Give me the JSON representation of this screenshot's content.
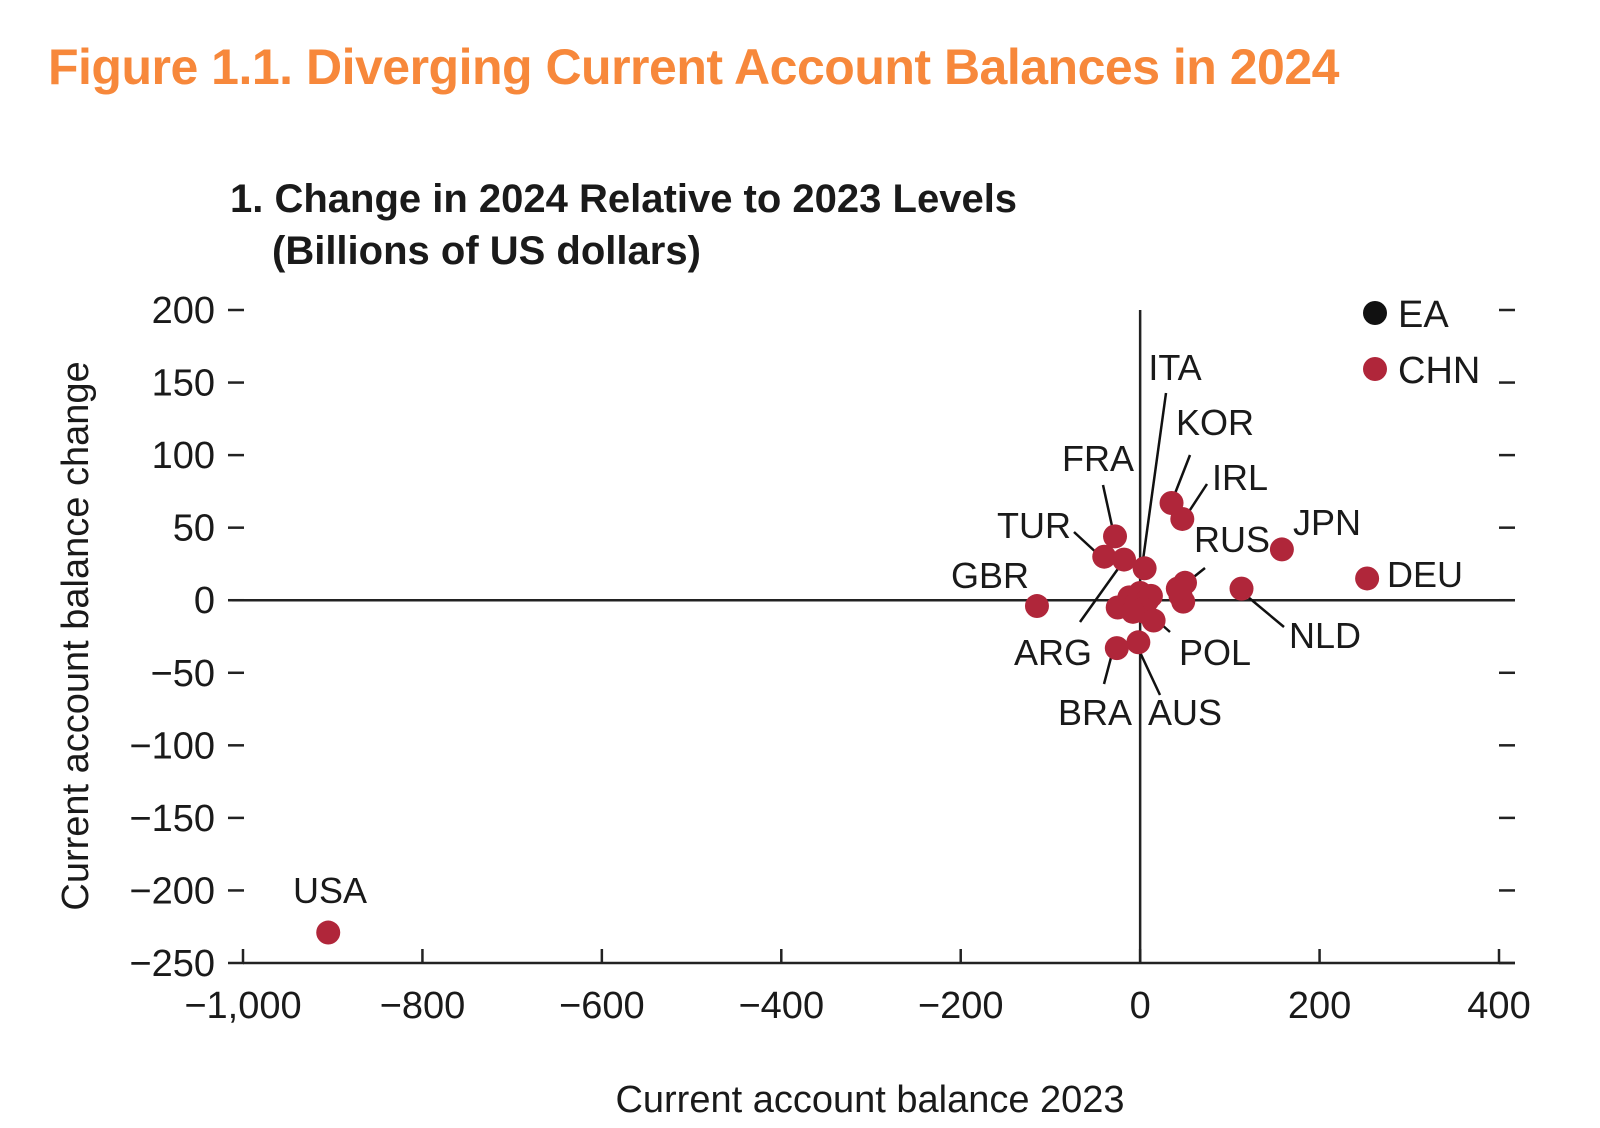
{
  "figure_title": "Figure 1.1. Diverging Current Account Balances in 2024",
  "chart_data": {
    "type": "scatter",
    "title": "1. Change in 2024 Relative to 2023 Levels",
    "subtitle": "(Billions of US dollars)",
    "xlabel": "Current account balance 2023",
    "ylabel": "Current account balance change",
    "xlim": [
      -1000,
      400
    ],
    "ylim": [
      -250,
      200
    ],
    "x_ticks": [
      -1000,
      -800,
      -600,
      -400,
      -200,
      0,
      200,
      400
    ],
    "x_tick_labels": [
      "−1,000",
      "−800",
      "−600",
      "−400",
      "−200",
      "0",
      "200",
      "400"
    ],
    "y_ticks": [
      200,
      150,
      100,
      50,
      0,
      -50,
      -100,
      -150,
      -200,
      -250
    ],
    "y_tick_labels": [
      "200",
      "150",
      "100",
      "50",
      "0",
      "−50",
      "−100",
      "−150",
      "−200",
      "−250"
    ],
    "legend": [
      {
        "name": "EA",
        "color": "#111111"
      },
      {
        "name": "CHN",
        "color": "#b0263a"
      }
    ],
    "legend_position": "top-right",
    "point_color": "#b0263a",
    "labeled_points": [
      {
        "label": "USA",
        "x": -905,
        "y": -229
      },
      {
        "label": "GBR",
        "x": -115,
        "y": -4
      },
      {
        "label": "TUR",
        "x": -40,
        "y": 30
      },
      {
        "label": "FRA",
        "x": -28,
        "y": 44
      },
      {
        "label": "ITA",
        "x": 5,
        "y": 22
      },
      {
        "label": "KOR",
        "x": 35,
        "y": 67
      },
      {
        "label": "IRL",
        "x": 47,
        "y": 56
      },
      {
        "label": "RUS",
        "x": 50,
        "y": 12
      },
      {
        "label": "JPN",
        "x": 158,
        "y": 35
      },
      {
        "label": "DEU",
        "x": 253,
        "y": 15
      },
      {
        "label": "NLD",
        "x": 113,
        "y": 8
      },
      {
        "label": "ARG",
        "x": -18,
        "y": 28
      },
      {
        "label": "POL",
        "x": 15,
        "y": -14
      },
      {
        "label": "BRA",
        "x": -26,
        "y": -33
      },
      {
        "label": "AUS",
        "x": -2,
        "y": -29
      }
    ],
    "unlabeled_points": [
      {
        "x": -25,
        "y": -5
      },
      {
        "x": -12,
        "y": 2
      },
      {
        "x": -5,
        "y": -3
      },
      {
        "x": 0,
        "y": 5
      },
      {
        "x": 5,
        "y": -8
      },
      {
        "x": 8,
        "y": 0
      },
      {
        "x": 12,
        "y": 3
      },
      {
        "x": 3,
        "y": -6
      },
      {
        "x": -8,
        "y": -8
      },
      {
        "x": 45,
        "y": 3
      },
      {
        "x": 48,
        "y": -1
      },
      {
        "x": 42,
        "y": 8
      }
    ]
  }
}
